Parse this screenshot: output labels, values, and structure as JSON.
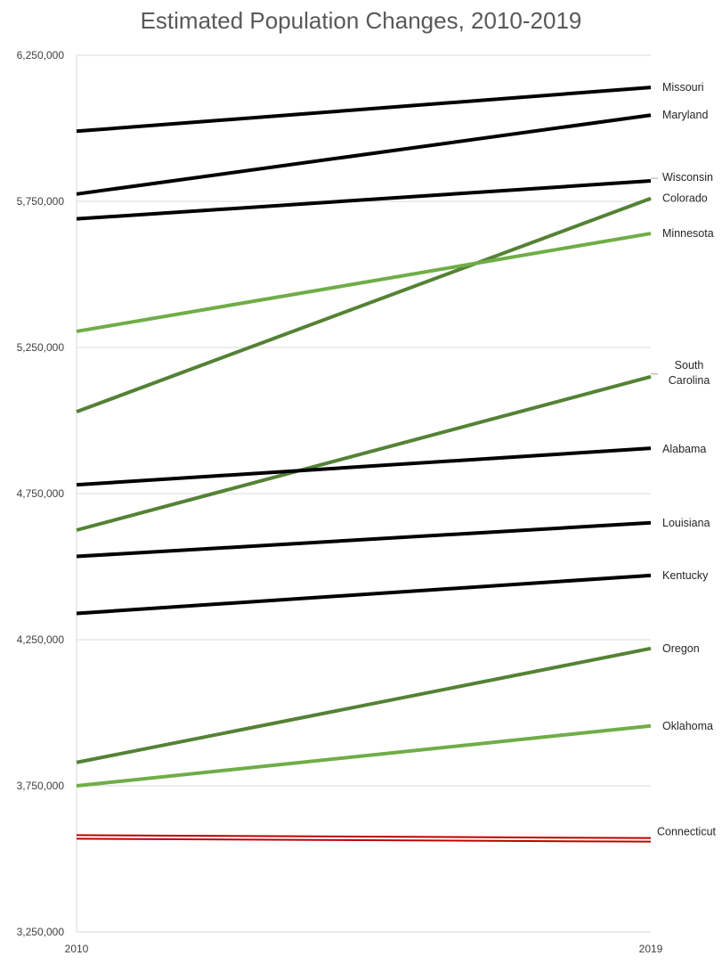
{
  "chart_data": {
    "type": "line",
    "title": "Estimated Population Changes, 2010-2019",
    "xlabel": "",
    "ylabel": "",
    "categories": [
      "2010",
      "2019"
    ],
    "ylim": [
      3250000,
      6250000
    ],
    "yticks": [
      3250000,
      3750000,
      4250000,
      4750000,
      5250000,
      5750000,
      6250000
    ],
    "ytick_labels": [
      "3,250,000",
      "3,750,000",
      "4,250,000",
      "4,750,000",
      "5,250,000",
      "5,750,000",
      "6,250,000"
    ],
    "grid": "horizontal",
    "legend": "direct labels at right end of lines",
    "series": [
      {
        "name": "Missouri",
        "values": [
          5990000,
          6140000
        ],
        "color": "#000000"
      },
      {
        "name": "Maryland",
        "values": [
          5775000,
          6045000
        ],
        "color": "#000000"
      },
      {
        "name": "Wisconsin",
        "values": [
          5690000,
          5820000
        ],
        "color": "#000000"
      },
      {
        "name": "Colorado",
        "values": [
          5030000,
          5760000
        ],
        "color": "#548235"
      },
      {
        "name": "Minnesota",
        "values": [
          5305000,
          5640000
        ],
        "color": "#70AD47"
      },
      {
        "name": "South Carolina",
        "values": [
          4625000,
          5150000
        ],
        "color": "#548235"
      },
      {
        "name": "Alabama",
        "values": [
          4780000,
          4905000
        ],
        "color": "#000000"
      },
      {
        "name": "Louisiana",
        "values": [
          4535000,
          4650000
        ],
        "color": "#000000"
      },
      {
        "name": "Kentucky",
        "values": [
          4340000,
          4470000
        ],
        "color": "#000000"
      },
      {
        "name": "Oregon",
        "values": [
          3830000,
          4220000
        ],
        "color": "#548235"
      },
      {
        "name": "Oklahoma",
        "values": [
          3750000,
          3955000
        ],
        "color": "#70AD47"
      },
      {
        "name": "Connecticut",
        "values": [
          3575000,
          3565000
        ],
        "color": "#C00000",
        "style": "double"
      }
    ]
  }
}
